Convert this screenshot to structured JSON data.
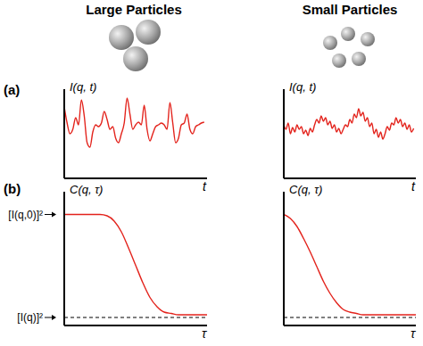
{
  "chart_data": [
    {
      "type": "line",
      "title": "Large Particles",
      "annotations": [
        "(a)"
      ],
      "y_label": "I(q, t)",
      "x_label": "t",
      "tick_labels": false,
      "color": "#e3231c",
      "xlim": [
        0,
        100
      ],
      "ylim": [
        0,
        1
      ],
      "x": [
        0,
        2,
        4,
        6,
        8,
        10,
        12,
        14,
        16,
        18,
        20,
        22,
        24,
        26,
        28,
        30,
        32,
        34,
        36,
        38,
        40,
        42,
        44,
        46,
        48,
        50,
        52,
        54,
        56,
        58,
        60,
        62,
        64,
        66,
        68,
        70,
        72,
        74,
        76,
        78,
        80,
        82,
        84,
        86,
        88,
        90,
        92,
        94,
        96,
        98
      ],
      "values": [
        0.8,
        0.62,
        0.5,
        0.55,
        0.68,
        0.6,
        0.88,
        0.7,
        0.4,
        0.35,
        0.52,
        0.6,
        0.58,
        0.62,
        0.75,
        0.66,
        0.55,
        0.58,
        0.45,
        0.4,
        0.5,
        0.62,
        0.9,
        0.72,
        0.55,
        0.6,
        0.63,
        0.6,
        0.82,
        0.55,
        0.42,
        0.5,
        0.58,
        0.6,
        0.62,
        0.6,
        0.55,
        0.85,
        0.62,
        0.4,
        0.45,
        0.6,
        0.62,
        0.72,
        0.55,
        0.5,
        0.58,
        0.6,
        0.62,
        0.63
      ]
    },
    {
      "type": "line",
      "title": "Small Particles",
      "y_label": "I(q, t)",
      "x_label": "t",
      "tick_labels": false,
      "color": "#e3231c",
      "xlim": [
        0,
        120
      ],
      "ylim": [
        0,
        1
      ],
      "x": [
        0,
        2,
        4,
        6,
        8,
        10,
        12,
        14,
        16,
        18,
        20,
        22,
        24,
        26,
        28,
        30,
        32,
        34,
        36,
        38,
        40,
        42,
        44,
        46,
        48,
        50,
        52,
        54,
        56,
        58,
        60,
        62,
        64,
        66,
        68,
        70,
        72,
        74,
        76,
        78,
        80,
        82,
        84,
        86,
        88,
        90,
        92,
        94,
        96,
        98,
        100,
        102,
        104,
        106,
        108,
        110,
        112,
        114,
        116,
        118
      ],
      "values": [
        0.6,
        0.55,
        0.62,
        0.5,
        0.57,
        0.52,
        0.6,
        0.55,
        0.58,
        0.5,
        0.54,
        0.48,
        0.56,
        0.52,
        0.6,
        0.66,
        0.62,
        0.7,
        0.64,
        0.68,
        0.6,
        0.64,
        0.56,
        0.6,
        0.52,
        0.56,
        0.5,
        0.55,
        0.6,
        0.58,
        0.66,
        0.62,
        0.72,
        0.68,
        0.78,
        0.7,
        0.74,
        0.64,
        0.68,
        0.58,
        0.62,
        0.5,
        0.55,
        0.46,
        0.52,
        0.44,
        0.5,
        0.58,
        0.54,
        0.62,
        0.6,
        0.68,
        0.62,
        0.66,
        0.58,
        0.62,
        0.55,
        0.6,
        0.52,
        0.56
      ]
    },
    {
      "type": "line",
      "annotations": [
        "(b)"
      ],
      "y_label": "C(q, τ)",
      "x_label": "τ",
      "tick_labels": "y",
      "color": "#e3231c",
      "xlim": [
        0,
        100
      ],
      "ylim": [
        0,
        1
      ],
      "yticks": [
        {
          "value": 0.83,
          "label": "[I(q,0)]²"
        },
        {
          "value": 0.06,
          "label": "[I(q)]²"
        }
      ],
      "reference_line": 0.06,
      "x": [
        0,
        5,
        10,
        15,
        20,
        25,
        30,
        35,
        40,
        45,
        50,
        55,
        60,
        65,
        70,
        75,
        80,
        85,
        90,
        95,
        100
      ],
      "values": [
        0.83,
        0.83,
        0.83,
        0.83,
        0.83,
        0.83,
        0.82,
        0.78,
        0.7,
        0.58,
        0.45,
        0.32,
        0.21,
        0.14,
        0.1,
        0.09,
        0.08,
        0.08,
        0.08,
        0.08,
        0.08
      ]
    },
    {
      "type": "line",
      "y_label": "C(q, τ)",
      "x_label": "τ",
      "tick_labels": false,
      "color": "#e3231c",
      "xlim": [
        0,
        100
      ],
      "ylim": [
        0,
        1
      ],
      "reference_line": 0.06,
      "x": [
        0,
        5,
        10,
        15,
        20,
        25,
        30,
        35,
        40,
        45,
        50,
        55,
        60,
        65,
        70,
        75,
        80,
        85,
        90,
        95,
        100
      ],
      "values": [
        0.83,
        0.8,
        0.74,
        0.65,
        0.55,
        0.44,
        0.33,
        0.24,
        0.17,
        0.12,
        0.1,
        0.09,
        0.08,
        0.08,
        0.08,
        0.08,
        0.08,
        0.08,
        0.08,
        0.08,
        0.08
      ]
    }
  ]
}
